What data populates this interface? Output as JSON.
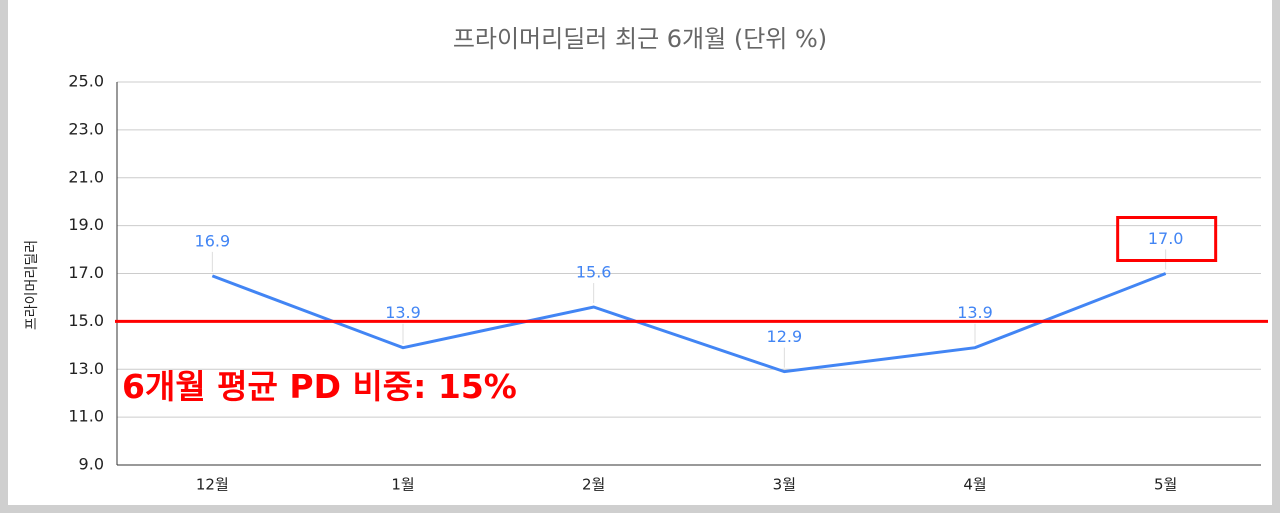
{
  "chart_data": {
    "type": "line",
    "title": "프라이머리딜러 최근 6개월 (단위 %)",
    "y_label": "프라이머리딜러",
    "categories": [
      "12월",
      "1월",
      "2월",
      "3월",
      "4월",
      "5월"
    ],
    "series": [
      {
        "color": "#4285f4",
        "values": [
          16.9,
          13.9,
          15.6,
          12.9,
          13.9,
          17.0
        ],
        "value_labels": [
          "16.9",
          "13.9",
          "15.6",
          "12.9",
          "13.9",
          "17.0"
        ]
      }
    ],
    "ylim": [
      9,
      25
    ],
    "yticks": [
      {
        "value": 9,
        "label": "9.0"
      },
      {
        "value": 11,
        "label": "11.0"
      },
      {
        "value": 13,
        "label": "13.0"
      },
      {
        "value": 15,
        "label": "15.0"
      },
      {
        "value": 17,
        "label": "17.0"
      },
      {
        "value": 19,
        "label": "19.0"
      },
      {
        "value": 21,
        "label": "21.0"
      },
      {
        "value": 23,
        "label": "23.0"
      },
      {
        "value": 25,
        "label": "25.0"
      }
    ],
    "grid": true,
    "reference_line": {
      "value": 15,
      "label": "6개월 평균 PD 비중: 15%",
      "color": "#ff0000"
    },
    "highlighted_point": 5
  }
}
